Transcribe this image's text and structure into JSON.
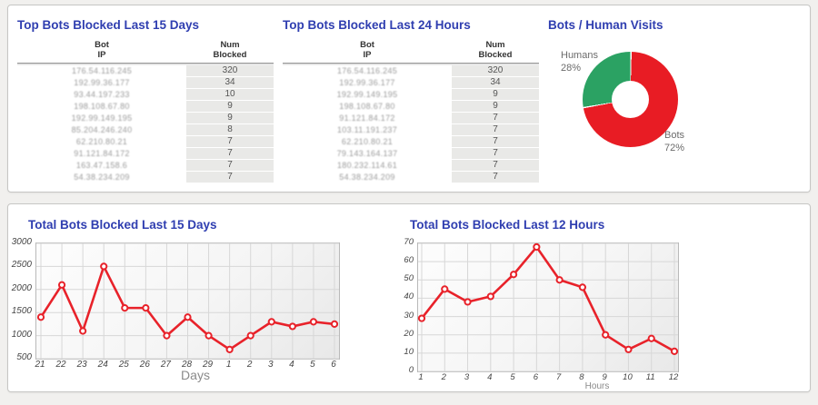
{
  "colors": {
    "title_blue": "#2f3eb0",
    "line_red": "#e8222a",
    "pie_red": "#e81c24",
    "pie_green": "#2ba263",
    "cell_gray": "#e9e9e7",
    "page_bg": "#f1f0ee"
  },
  "tables": [
    {
      "title": "Top Bots Blocked Last 15 Days",
      "columns": [
        {
          "line1": "Bot",
          "line2": "IP"
        },
        {
          "line1": "Num",
          "line2": "Blocked"
        }
      ],
      "rows": [
        {
          "ip": "176.54.116.245",
          "num": "320"
        },
        {
          "ip": "192.99.36.177",
          "num": "34"
        },
        {
          "ip": "93.44.197.233",
          "num": "10"
        },
        {
          "ip": "198.108.67.80",
          "num": "9"
        },
        {
          "ip": "192.99.149.195",
          "num": "9"
        },
        {
          "ip": "85.204.246.240",
          "num": "8"
        },
        {
          "ip": "62.210.80.21",
          "num": "7"
        },
        {
          "ip": "91.121.84.172",
          "num": "7"
        },
        {
          "ip": "163.47.158.6",
          "num": "7"
        },
        {
          "ip": "54.38.234.209",
          "num": "7"
        }
      ]
    },
    {
      "title": "Top Bots Blocked Last 24 Hours",
      "columns": [
        {
          "line1": "Bot",
          "line2": "IP"
        },
        {
          "line1": "Num",
          "line2": "Blocked"
        }
      ],
      "rows": [
        {
          "ip": "176.54.116.245",
          "num": "320"
        },
        {
          "ip": "192.99.36.177",
          "num": "34"
        },
        {
          "ip": "192.99.149.195",
          "num": "9"
        },
        {
          "ip": "198.108.67.80",
          "num": "9"
        },
        {
          "ip": "91.121.84.172",
          "num": "7"
        },
        {
          "ip": "103.11.191.237",
          "num": "7"
        },
        {
          "ip": "62.210.80.21",
          "num": "7"
        },
        {
          "ip": "79.143.164.137",
          "num": "7"
        },
        {
          "ip": "180.232.114.61",
          "num": "7"
        },
        {
          "ip": "54.38.234.209",
          "num": "7"
        }
      ]
    }
  ],
  "chart_data": [
    {
      "type": "pie",
      "title": "Bots / Human Visits",
      "donut": true,
      "start_angle_deg": 0,
      "direction": "clockwise",
      "slices": [
        {
          "label": "Bots",
          "value": 72,
          "color": "#e81c24",
          "label_position": "bottom-right"
        },
        {
          "label": "Humans",
          "value": 28,
          "color": "#2ba263",
          "label_position": "top-left"
        }
      ]
    },
    {
      "type": "line",
      "title": "Total Bots Blocked Last 15 Days",
      "xlabel": "Days",
      "categories": [
        "21",
        "22",
        "23",
        "24",
        "25",
        "26",
        "27",
        "28",
        "29",
        "1",
        "2",
        "3",
        "4",
        "5",
        "6"
      ],
      "values": [
        1400,
        2100,
        1100,
        2500,
        1600,
        1600,
        1000,
        1400,
        1000,
        700,
        1000,
        1300,
        1200,
        1300,
        1250
      ],
      "ylim": [
        500,
        3000
      ],
      "yticks": [
        500,
        1000,
        1500,
        2000,
        2500,
        3000
      ],
      "grid": true,
      "line_color": "#e8222a",
      "marker": "open-circle"
    },
    {
      "type": "line",
      "title": "Total Bots Blocked Last 12 Hours",
      "xlabel": "Hours",
      "categories": [
        "1",
        "2",
        "3",
        "4",
        "5",
        "6",
        "7",
        "8",
        "9",
        "10",
        "11",
        "12"
      ],
      "values": [
        29,
        45,
        38,
        41,
        53,
        68,
        50,
        46,
        20,
        12,
        18,
        11
      ],
      "ylim": [
        0,
        70
      ],
      "yticks": [
        0,
        10,
        20,
        30,
        40,
        50,
        60,
        70
      ],
      "grid": true,
      "line_color": "#e8222a",
      "marker": "open-circle"
    }
  ]
}
